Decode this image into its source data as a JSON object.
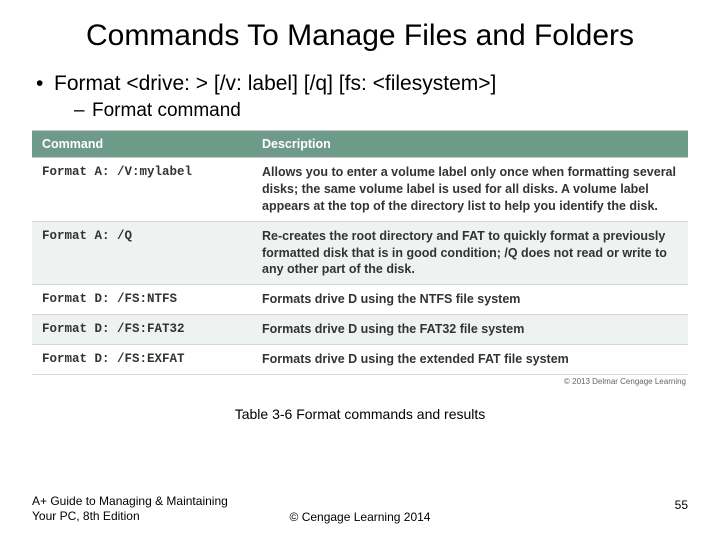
{
  "title": "Commands To Manage Files and Folders",
  "bullet1": "Format <drive: > [/v: label] [/q] [fs: <filesystem>]",
  "bullet2": "Format command",
  "table": {
    "header_bg": "#6e9a8a",
    "header_fg": "#ffffff",
    "row_alt_bg": "#eef3f1",
    "border_color": "#d6d6d6",
    "col1": "Command",
    "col2": "Description",
    "rows": [
      {
        "cmd": "Format A: /V:mylabel",
        "desc": "Allows you to enter a volume label only once when formatting several disks; the same volume label is used for all disks. A volume label appears at the top of the directory list to help you identify the disk."
      },
      {
        "cmd": "Format A: /Q",
        "desc": "Re-creates the root directory and FAT to quickly format a previously formatted disk that is in good condition; /Q does not read or write to any other part of the disk."
      },
      {
        "cmd": "Format D: /FS:NTFS",
        "desc": "Formats drive D using the NTFS file system"
      },
      {
        "cmd": "Format D: /FS:FAT32",
        "desc": "Formats drive D using the FAT32 file system"
      },
      {
        "cmd": "Format D: /FS:EXFAT",
        "desc": "Formats drive D using the extended FAT file system"
      }
    ],
    "img_copyright": "© 2013 Delmar Cengage Learning"
  },
  "caption": "Table 3-6 Format commands and results",
  "footer": {
    "left": "A+ Guide to Managing & Maintaining Your PC, 8th Edition",
    "center": "© Cengage Learning  2014",
    "page": "55"
  }
}
